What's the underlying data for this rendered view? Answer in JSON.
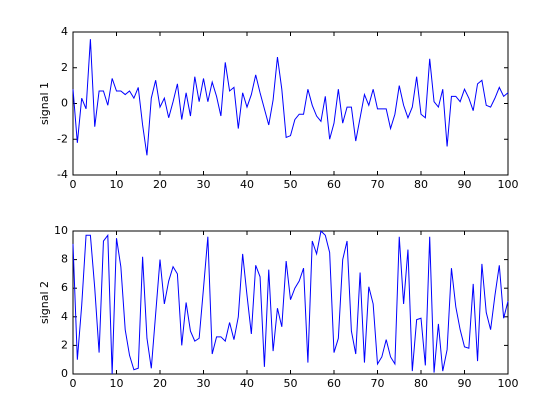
{
  "chart_data": [
    {
      "type": "line",
      "ylabel": "signal 1",
      "x": [
        0,
        1,
        2,
        3,
        4,
        5,
        6,
        7,
        8,
        9,
        10,
        11,
        12,
        13,
        14,
        15,
        16,
        17,
        18,
        19,
        20,
        21,
        22,
        23,
        24,
        25,
        26,
        27,
        28,
        29,
        30,
        31,
        32,
        33,
        34,
        35,
        36,
        37,
        38,
        39,
        40,
        41,
        42,
        43,
        44,
        45,
        46,
        47,
        48,
        49,
        50,
        51,
        52,
        53,
        54,
        55,
        56,
        57,
        58,
        59,
        60,
        61,
        62,
        63,
        64,
        65,
        66,
        67,
        68,
        69,
        70,
        71,
        72,
        73,
        74,
        75,
        76,
        77,
        78,
        79,
        80,
        81,
        82,
        83,
        84,
        85,
        86,
        87,
        88,
        89,
        90,
        91,
        92,
        93,
        94,
        95,
        96,
        97,
        98,
        99,
        100
      ],
      "series": [
        {
          "color": "#0000ff",
          "values": [
            0.8,
            -2.2,
            0.3,
            -0.3,
            3.6,
            -1.3,
            0.7,
            0.7,
            -0.1,
            1.4,
            0.7,
            0.7,
            0.5,
            0.7,
            0.3,
            0.9,
            -1.2,
            -2.9,
            0.3,
            1.3,
            -0.2,
            0.3,
            -0.8,
            0.1,
            1.1,
            -0.9,
            0.6,
            -0.7,
            1.5,
            0.1,
            1.4,
            0.1,
            1.2,
            0.4,
            -0.7,
            2.3,
            0.7,
            0.9,
            -1.4,
            0.6,
            -0.2,
            0.5,
            1.6,
            0.6,
            -0.3,
            -1.2,
            0.2,
            2.6,
            0.8,
            -1.9,
            -1.8,
            -0.9,
            -0.6,
            -0.6,
            0.8,
            -0.1,
            -0.7,
            -1.0,
            0.4,
            -2.0,
            -1.1,
            0.8,
            -1.1,
            -0.2,
            -0.2,
            -2.1,
            -0.8,
            0.5,
            -0.1,
            0.8,
            -0.3,
            -0.3,
            -0.3,
            -1.4,
            -0.6,
            1.0,
            -0.1,
            -0.8,
            -0.2,
            1.5,
            -0.6,
            -0.8,
            2.5,
            0.1,
            -0.2,
            0.8,
            -2.4,
            0.4,
            0.4,
            0.1,
            0.8,
            0.3,
            -0.4,
            1.1,
            1.3,
            -0.1,
            -0.2,
            0.3,
            0.9,
            0.4,
            0.6
          ]
        }
      ],
      "xlim": [
        0,
        100
      ],
      "xticks": [
        0,
        10,
        20,
        30,
        40,
        50,
        60,
        70,
        80,
        90,
        100
      ],
      "ylim": [
        -4,
        4
      ],
      "yticks": [
        -4,
        -2,
        0,
        2,
        4
      ]
    },
    {
      "type": "line",
      "ylabel": "signal 2",
      "x": [
        0,
        1,
        2,
        3,
        4,
        5,
        6,
        7,
        8,
        9,
        10,
        11,
        12,
        13,
        14,
        15,
        16,
        17,
        18,
        19,
        20,
        21,
        22,
        23,
        24,
        25,
        26,
        27,
        28,
        29,
        30,
        31,
        32,
        33,
        34,
        35,
        36,
        37,
        38,
        39,
        40,
        41,
        42,
        43,
        44,
        45,
        46,
        47,
        48,
        49,
        50,
        51,
        52,
        53,
        54,
        55,
        56,
        57,
        58,
        59,
        60,
        61,
        62,
        63,
        64,
        65,
        66,
        67,
        68,
        69,
        70,
        71,
        72,
        73,
        74,
        75,
        76,
        77,
        78,
        79,
        80,
        81,
        82,
        83,
        84,
        85,
        86,
        87,
        88,
        89,
        90,
        91,
        92,
        93,
        94,
        95,
        96,
        97,
        98,
        99,
        100
      ],
      "series": [
        {
          "color": "#0000ff",
          "values": [
            9.1,
            1.0,
            4.8,
            9.7,
            9.7,
            6.0,
            1.5,
            9.3,
            9.7,
            0.0,
            9.5,
            7.5,
            3.1,
            1.3,
            0.3,
            0.4,
            8.2,
            2.5,
            0.4,
            4.2,
            8.0,
            4.9,
            6.5,
            7.5,
            7.0,
            2.0,
            5.0,
            3.0,
            2.3,
            2.5,
            6.0,
            9.6,
            1.4,
            2.6,
            2.6,
            2.3,
            3.6,
            2.4,
            4.0,
            8.4,
            5.5,
            2.8,
            7.6,
            6.8,
            0.5,
            7.3,
            1.6,
            4.6,
            3.3,
            7.9,
            5.2,
            6.0,
            6.5,
            7.4,
            0.8,
            9.3,
            8.4,
            10.0,
            9.7,
            8.5,
            1.5,
            2.5,
            8.0,
            9.3,
            3.0,
            1.4,
            7.1,
            0.8,
            6.1,
            4.9,
            0.7,
            1.2,
            2.4,
            1.2,
            0.7,
            9.6,
            4.9,
            8.7,
            0.2,
            3.8,
            3.9,
            0.6,
            9.6,
            0.1,
            3.5,
            0.2,
            1.7,
            7.4,
            4.7,
            3.1,
            1.9,
            1.8,
            6.3,
            0.9,
            7.7,
            4.3,
            3.1,
            5.5,
            7.6,
            3.9,
            5.1
          ]
        }
      ],
      "xlim": [
        0,
        100
      ],
      "xticks": [
        0,
        10,
        20,
        30,
        40,
        50,
        60,
        70,
        80,
        90,
        100
      ],
      "ylim": [
        0,
        10
      ],
      "yticks": [
        0,
        2,
        4,
        6,
        8,
        10
      ]
    }
  ]
}
